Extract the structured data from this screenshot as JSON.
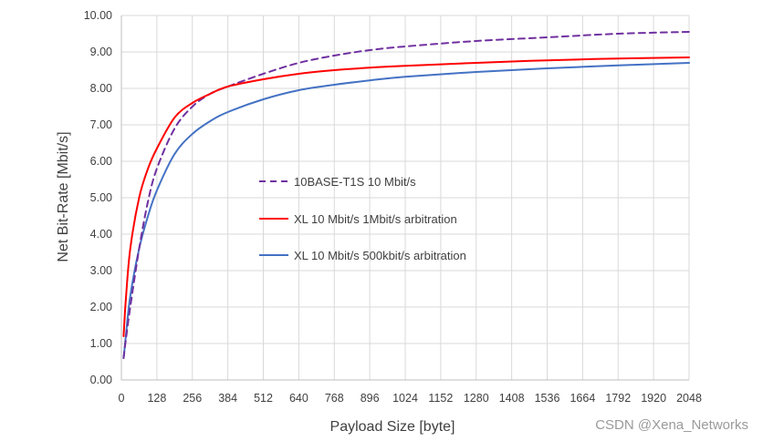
{
  "chart_data": {
    "type": "line",
    "title": "",
    "xlabel": "Payload Size [byte]",
    "ylabel": "Net Bit-Rate [Mbit/s]",
    "xlim": [
      0,
      2048
    ],
    "ylim": [
      0,
      10
    ],
    "x_ticks": [
      "0",
      "128",
      "256",
      "384",
      "512",
      "640",
      "768",
      "896",
      "1024",
      "1152",
      "1280",
      "1408",
      "1536",
      "1664",
      "1792",
      "1920",
      "2048"
    ],
    "y_ticks": [
      "0.00",
      "1.00",
      "2.00",
      "3.00",
      "4.00",
      "5.00",
      "6.00",
      "7.00",
      "8.00",
      "9.00",
      "10.00"
    ],
    "grid": "both",
    "legend_position": "center",
    "series": [
      {
        "name": "10BASE-T1S 10 Mbit/s",
        "color": "#7030a0",
        "style": "dashed",
        "x": [
          8,
          16,
          32,
          64,
          96,
          128,
          192,
          256,
          320,
          384,
          512,
          640,
          768,
          896,
          1024,
          1280,
          1536,
          1792,
          2048
        ],
        "y": [
          0.6,
          1.1,
          2.0,
          3.6,
          4.9,
          5.8,
          6.9,
          7.5,
          7.85,
          8.05,
          8.4,
          8.7,
          8.9,
          9.05,
          9.15,
          9.3,
          9.4,
          9.5,
          9.55
        ]
      },
      {
        "name": "XL 10 Mbit/s 1Mbit/s arbitration",
        "color": "#ff0000",
        "style": "solid",
        "x": [
          8,
          16,
          32,
          64,
          96,
          128,
          192,
          256,
          320,
          384,
          512,
          640,
          768,
          896,
          1024,
          1280,
          1536,
          1792,
          2048
        ],
        "y": [
          1.2,
          2.2,
          3.6,
          5.0,
          5.8,
          6.35,
          7.2,
          7.6,
          7.85,
          8.05,
          8.25,
          8.4,
          8.5,
          8.57,
          8.62,
          8.7,
          8.77,
          8.82,
          8.85
        ]
      },
      {
        "name": "XL 10 Mbit/s 500kbit/s arbitration",
        "color": "#4472c4",
        "style": "solid",
        "x": [
          8,
          16,
          32,
          64,
          96,
          128,
          192,
          256,
          320,
          384,
          512,
          640,
          768,
          896,
          1024,
          1280,
          1536,
          1792,
          2048
        ],
        "y": [
          0.6,
          1.2,
          2.3,
          3.6,
          4.5,
          5.2,
          6.2,
          6.75,
          7.1,
          7.35,
          7.7,
          7.95,
          8.1,
          8.22,
          8.32,
          8.45,
          8.55,
          8.63,
          8.7
        ]
      }
    ]
  },
  "watermark": "CSDN @Xena_Networks"
}
